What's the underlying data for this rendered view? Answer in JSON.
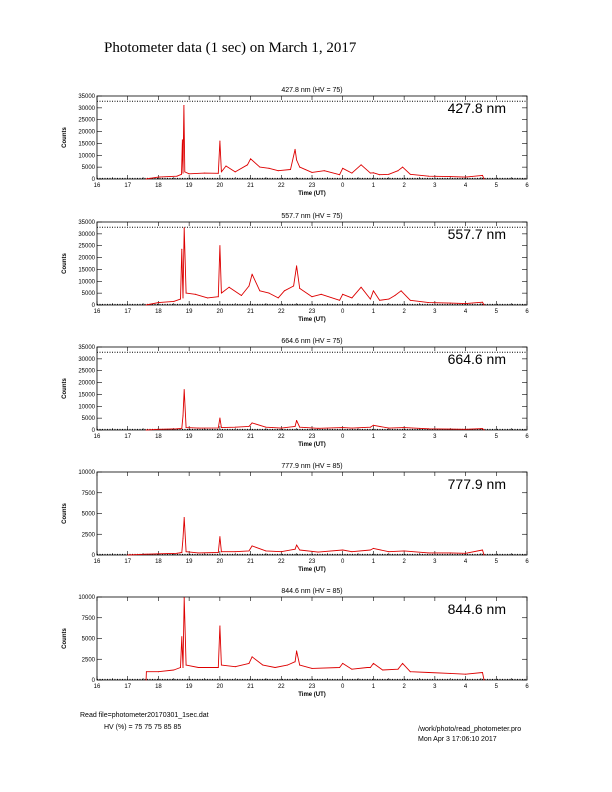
{
  "title": "Photometer data (1 sec) on March 1, 2017",
  "footer": {
    "read_file": "Read file=photometer20170301_1sec.dat",
    "hv": "HV (%) =  75 75 75 85 85",
    "program": "/work/photo/read_photometer.pro",
    "datetime": "Mon Apr  3 17:06:10 2017"
  },
  "chart_data": [
    {
      "type": "line",
      "title": "427.8 nm  (HV = 75)",
      "inset_label": "427.8 nm",
      "xlabel": "Time (UT)",
      "ylabel": "Counts",
      "x_ticks": [
        "16",
        "17",
        "18",
        "19",
        "20",
        "21",
        "22",
        "23",
        "0",
        "1",
        "2",
        "3",
        "4",
        "5",
        "6"
      ],
      "y_ticks": [
        "0",
        "5000",
        "10000",
        "15000",
        "20000",
        "25000",
        "30000",
        "35000"
      ],
      "ylim": [
        0,
        35000
      ],
      "saturation_level": 32767,
      "series_color": "#dd0000",
      "x_hours": [
        17.6,
        18.0,
        18.6,
        18.75,
        18.78,
        18.8,
        18.83,
        18.86,
        19.0,
        19.5,
        19.95,
        20.0,
        20.05,
        20.2,
        20.5,
        20.9,
        21.0,
        21.3,
        21.6,
        21.9,
        22.3,
        22.45,
        22.5,
        22.6,
        23.0,
        23.4,
        23.9,
        24.0,
        24.3,
        24.6,
        24.9,
        25.0,
        25.2,
        25.5,
        25.8,
        25.95,
        26.2,
        26.8,
        27.5,
        28.0,
        28.55,
        28.6
      ],
      "values": [
        0,
        800,
        1200,
        2000,
        16500,
        2500,
        31000,
        3000,
        2200,
        2500,
        2400,
        16000,
        3000,
        5500,
        3000,
        6000,
        8500,
        5000,
        4500,
        3500,
        4000,
        12500,
        8000,
        5000,
        2800,
        3500,
        1800,
        4500,
        2500,
        6000,
        2500,
        2600,
        1800,
        2000,
        3500,
        5000,
        2000,
        1200,
        1000,
        800,
        1500,
        0
      ]
    },
    {
      "type": "line",
      "title": "557.7 nm  (HV = 75)",
      "inset_label": "557.7 nm",
      "xlabel": "Time (UT)",
      "ylabel": "Counts",
      "x_ticks": [
        "16",
        "17",
        "18",
        "19",
        "20",
        "21",
        "22",
        "23",
        "0",
        "1",
        "2",
        "3",
        "4",
        "5",
        "6"
      ],
      "y_ticks": [
        "0",
        "5000",
        "10000",
        "15000",
        "20000",
        "25000",
        "30000",
        "35000"
      ],
      "ylim": [
        0,
        35000
      ],
      "saturation_level": 32767,
      "series_color": "#dd0000",
      "x_hours": [
        17.6,
        18.0,
        18.5,
        18.72,
        18.76,
        18.8,
        18.84,
        18.9,
        19.2,
        19.6,
        19.95,
        20.0,
        20.05,
        20.3,
        20.7,
        20.95,
        21.05,
        21.3,
        21.6,
        21.9,
        22.1,
        22.4,
        22.5,
        22.6,
        23.0,
        23.3,
        23.9,
        24.0,
        24.3,
        24.6,
        24.9,
        25.0,
        25.2,
        25.5,
        25.7,
        25.9,
        26.2,
        26.8,
        27.5,
        28.0,
        28.55,
        28.6
      ],
      "values": [
        0,
        1000,
        1500,
        2500,
        23500,
        3000,
        32500,
        5000,
        4500,
        3000,
        3500,
        25000,
        5000,
        7500,
        4000,
        8000,
        13000,
        6000,
        5000,
        3000,
        6000,
        8000,
        16500,
        7000,
        3500,
        4500,
        2000,
        4500,
        3000,
        7500,
        2500,
        6000,
        2000,
        2500,
        4000,
        6000,
        2000,
        1000,
        800,
        600,
        1200,
        0
      ]
    },
    {
      "type": "line",
      "title": "664.6 nm  (HV = 75)",
      "inset_label": "664.6 nm",
      "xlabel": "Time (UT)",
      "ylabel": "Counts",
      "x_ticks": [
        "16",
        "17",
        "18",
        "19",
        "20",
        "21",
        "22",
        "23",
        "0",
        "1",
        "2",
        "3",
        "4",
        "5",
        "6"
      ],
      "y_ticks": [
        "0",
        "5000",
        "10000",
        "15000",
        "20000",
        "25000",
        "30000",
        "35000"
      ],
      "ylim": [
        0,
        35000
      ],
      "saturation_level": 32767,
      "series_color": "#dd0000",
      "x_hours": [
        17.6,
        18.0,
        18.6,
        18.76,
        18.8,
        18.84,
        18.9,
        19.3,
        19.95,
        20.0,
        20.05,
        20.5,
        20.95,
        21.05,
        21.5,
        22.0,
        22.45,
        22.5,
        22.6,
        23.2,
        24.0,
        24.3,
        24.9,
        25.0,
        25.5,
        26.0,
        26.8,
        27.5,
        28.0,
        28.55,
        28.6
      ],
      "values": [
        0,
        300,
        500,
        700,
        6000,
        17000,
        1000,
        800,
        900,
        5000,
        1000,
        1200,
        1500,
        3000,
        1200,
        800,
        1500,
        4000,
        1200,
        700,
        1000,
        800,
        1200,
        2000,
        800,
        1000,
        500,
        400,
        300,
        600,
        0
      ]
    },
    {
      "type": "line",
      "title": "777.9 nm  (HV = 85)",
      "inset_label": "777.9 nm",
      "xlabel": "Time (UT)",
      "ylabel": "Counts",
      "x_ticks": [
        "16",
        "17",
        "18",
        "19",
        "20",
        "21",
        "22",
        "23",
        "0",
        "1",
        "2",
        "3",
        "4",
        "5",
        "6"
      ],
      "y_ticks": [
        "0",
        "2500",
        "5000",
        "7500",
        "10000"
      ],
      "ylim": [
        0,
        10000
      ],
      "saturation_level": null,
      "series_color": "#dd0000",
      "x_hours": [
        17.0,
        17.6,
        18.0,
        18.6,
        18.76,
        18.8,
        18.84,
        18.9,
        19.3,
        19.95,
        20.0,
        20.05,
        20.5,
        20.95,
        21.05,
        21.5,
        22.0,
        22.45,
        22.5,
        22.6,
        23.2,
        24.0,
        24.3,
        24.9,
        25.0,
        25.5,
        26.0,
        26.8,
        27.5,
        28.0,
        28.55,
        28.6
      ],
      "values": [
        0,
        100,
        150,
        200,
        300,
        2000,
        4500,
        400,
        250,
        300,
        2200,
        400,
        400,
        500,
        1100,
        500,
        400,
        700,
        1200,
        600,
        350,
        600,
        400,
        600,
        800,
        400,
        500,
        250,
        250,
        200,
        600,
        0
      ]
    },
    {
      "type": "line",
      "title": "844.6 nm  (HV = 85)",
      "inset_label": "844.6 nm",
      "xlabel": "Time (UT)",
      "ylabel": "Counts",
      "x_ticks": [
        "16",
        "17",
        "18",
        "19",
        "20",
        "21",
        "22",
        "23",
        "0",
        "1",
        "2",
        "3",
        "4",
        "5",
        "6"
      ],
      "y_ticks": [
        "0",
        "2500",
        "5000",
        "7500",
        "10000"
      ],
      "ylim": [
        0,
        10000
      ],
      "saturation_level": null,
      "series_color": "#dd0000",
      "x_hours": [
        17.6,
        17.61,
        18.0,
        18.5,
        18.72,
        18.76,
        18.8,
        18.84,
        18.9,
        19.3,
        19.95,
        20.0,
        20.05,
        20.5,
        20.95,
        21.05,
        21.4,
        21.8,
        22.2,
        22.45,
        22.5,
        22.6,
        23.0,
        23.9,
        24.0,
        24.3,
        24.8,
        24.9,
        25.0,
        25.3,
        25.8,
        25.95,
        26.2,
        26.8,
        27.5,
        28.0,
        28.55,
        28.6
      ],
      "values": [
        0,
        1000,
        1000,
        1200,
        1500,
        5200,
        1500,
        9900,
        1800,
        1500,
        1500,
        6500,
        1800,
        1600,
        2000,
        2800,
        1800,
        1500,
        1800,
        2200,
        3500,
        1800,
        1400,
        1500,
        2000,
        1300,
        1500,
        1500,
        2000,
        1200,
        1300,
        2000,
        1000,
        900,
        800,
        700,
        900,
        0
      ]
    }
  ]
}
